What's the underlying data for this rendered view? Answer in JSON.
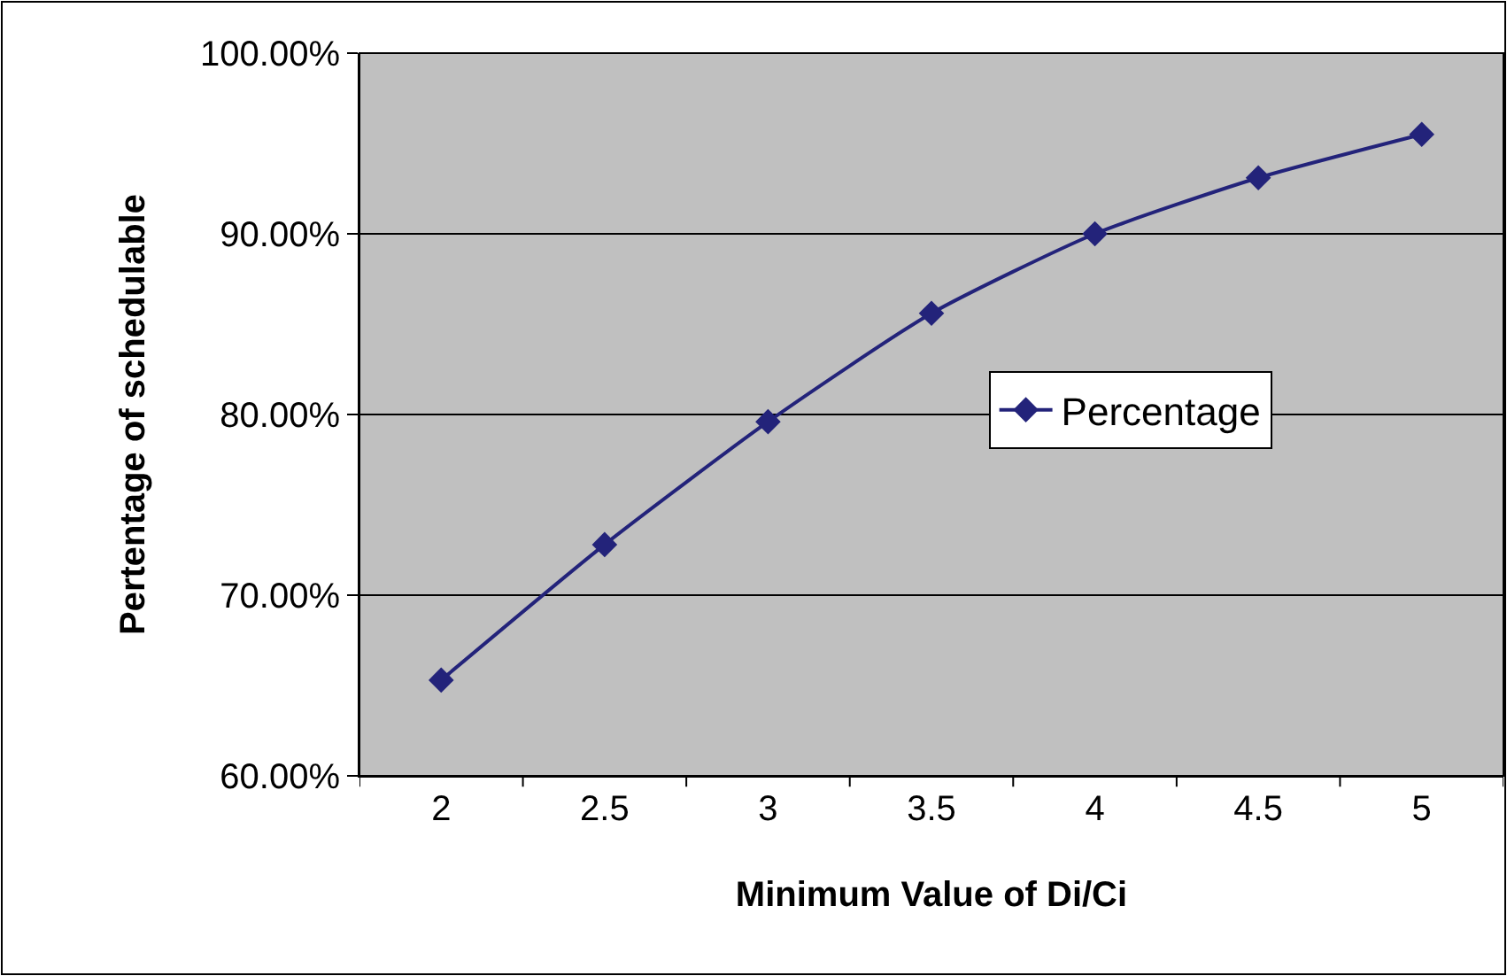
{
  "chart_data": {
    "type": "line",
    "xlabel": "Minimum Value of Di/Ci",
    "ylabel": "Pertentage of schedulable",
    "categories": [
      "2",
      "2.5",
      "3",
      "3.5",
      "4",
      "4.5",
      "5"
    ],
    "series": [
      {
        "name": "Percentage",
        "color": "#23237a",
        "values": [
          65.3,
          72.8,
          79.6,
          85.6,
          90.0,
          93.1,
          95.5
        ]
      }
    ],
    "ylim": [
      60,
      100
    ],
    "yticks": [
      {
        "value": 60,
        "label": "60.00%"
      },
      {
        "value": 70,
        "label": "70.00%"
      },
      {
        "value": 80,
        "label": "80.00%"
      },
      {
        "value": 90,
        "label": "90.00%"
      },
      {
        "value": 100,
        "label": "100.00%"
      }
    ],
    "grid": "y",
    "legend": "right",
    "marker": "diamond",
    "line_style": "solid"
  }
}
